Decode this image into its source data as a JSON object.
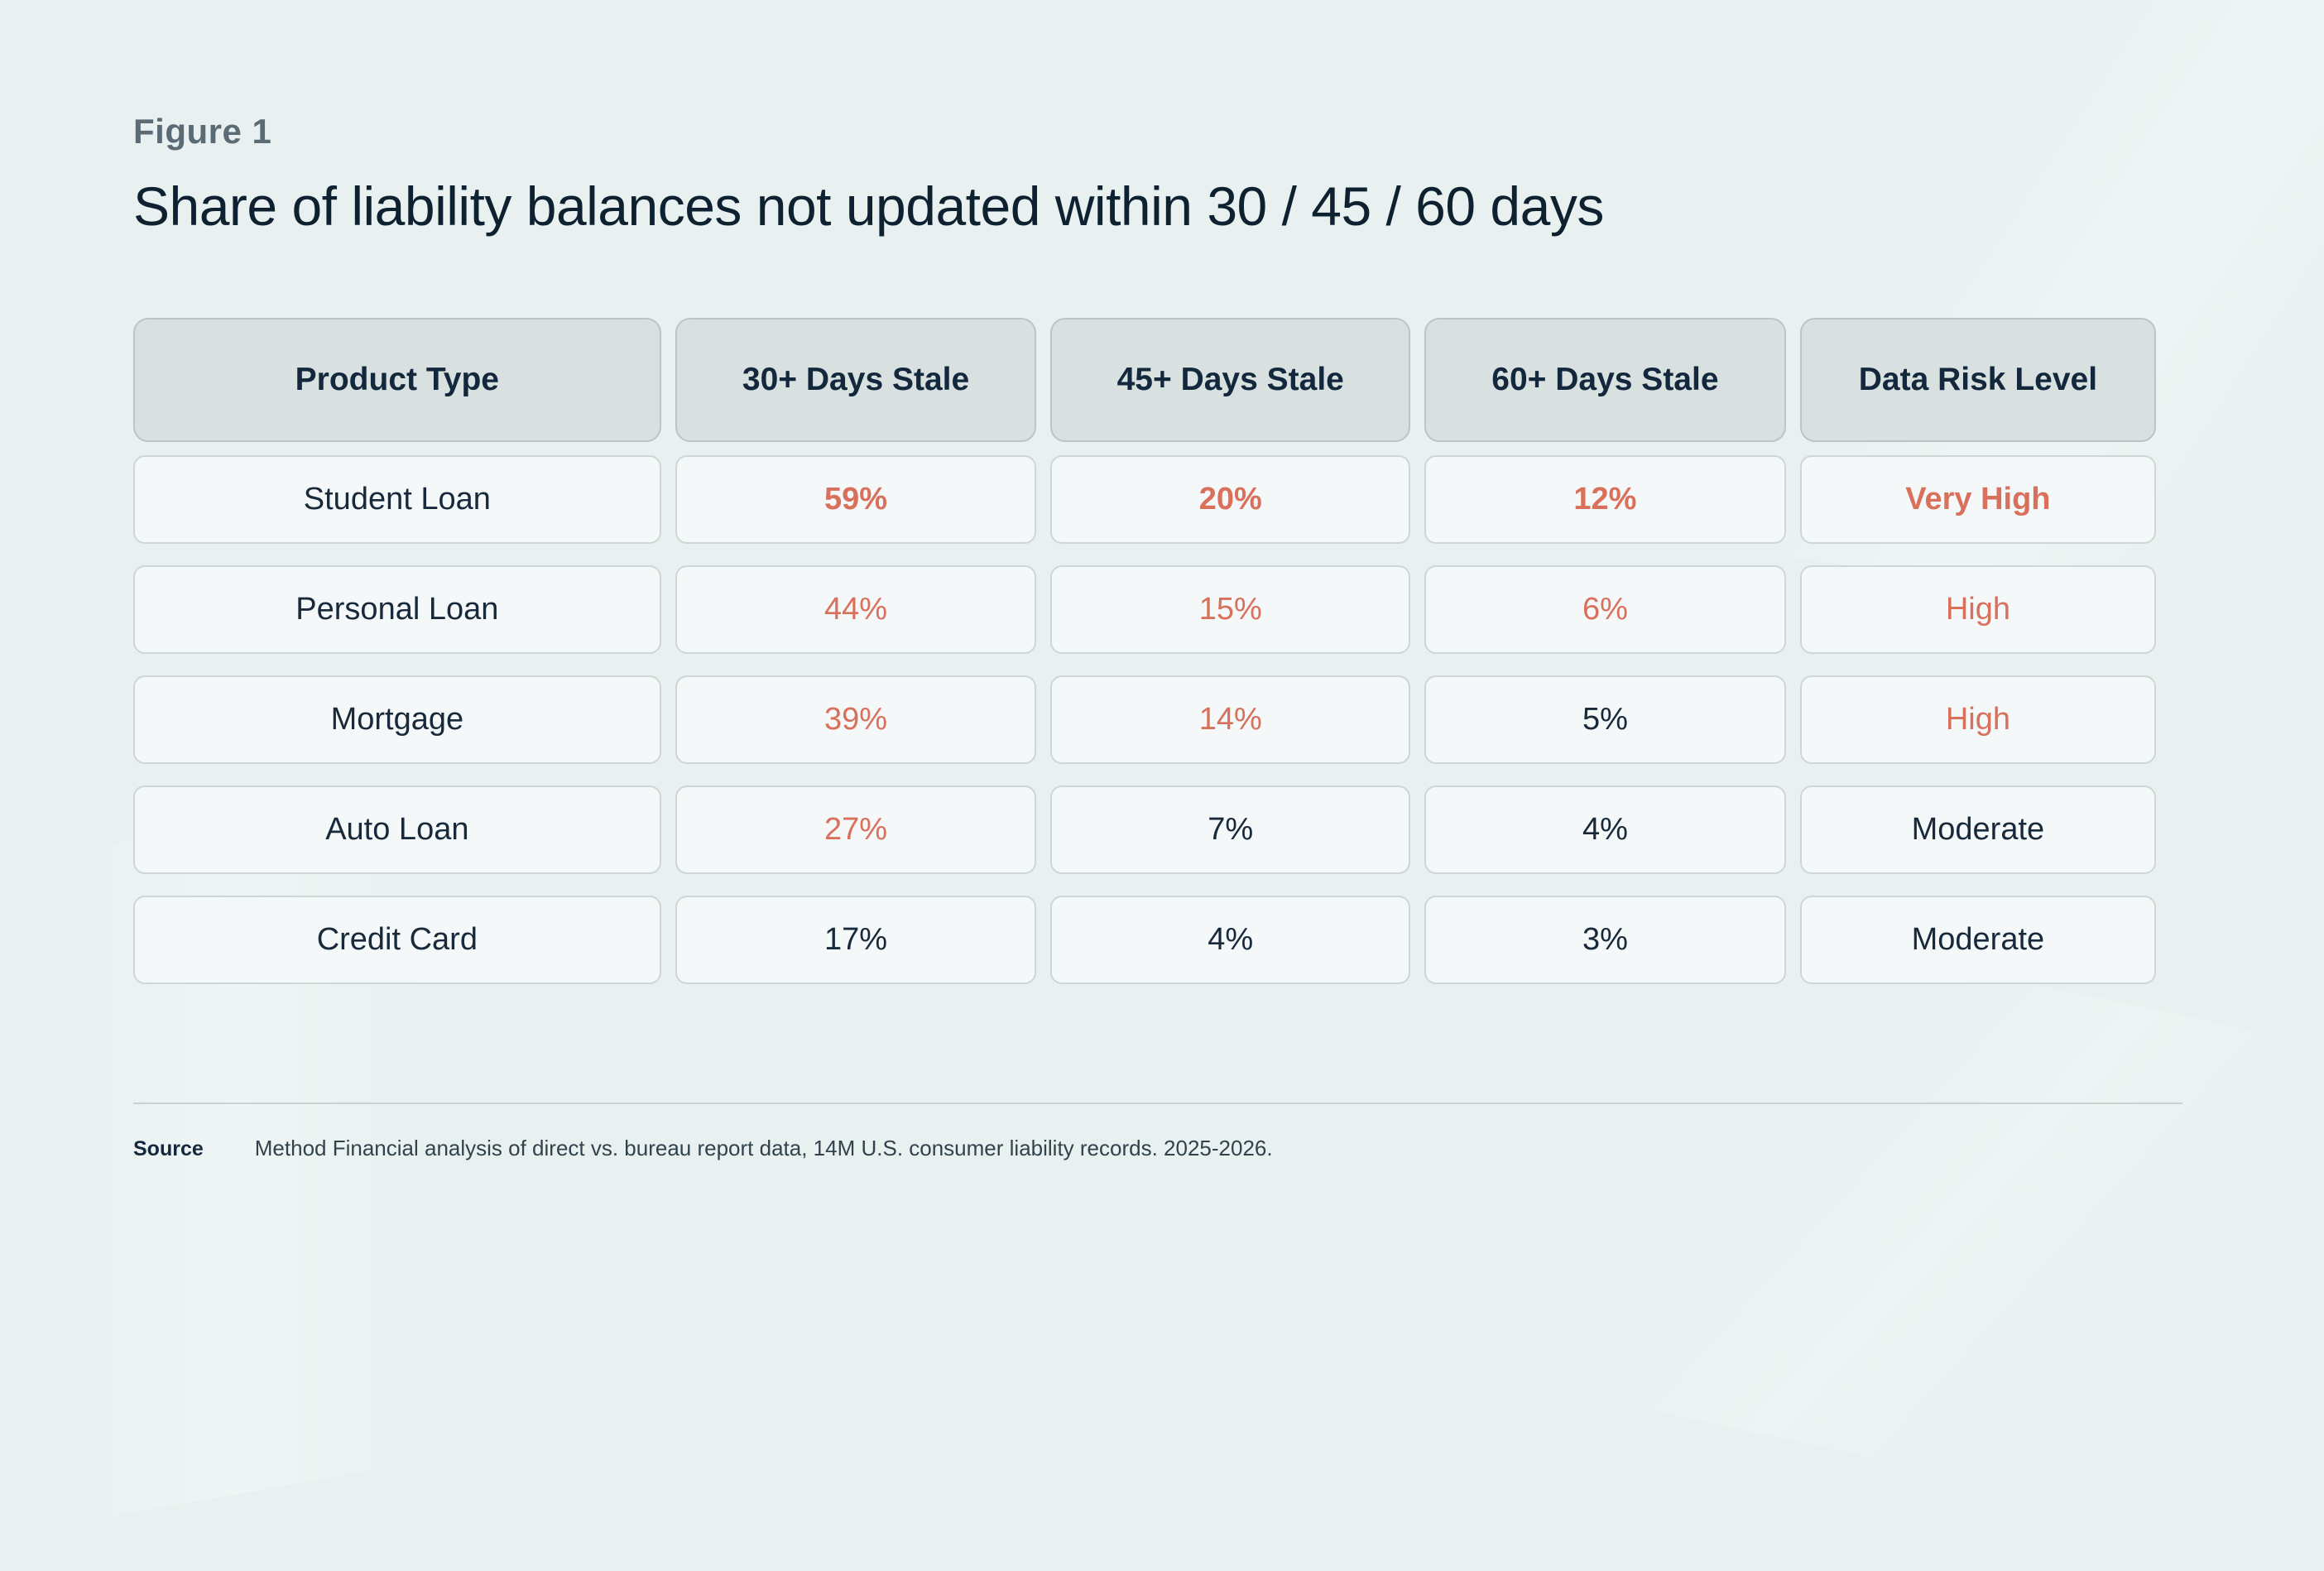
{
  "figure": {
    "label": "Figure 1",
    "title": "Share of liability balances not updated within 30 / 45 / 60 days"
  },
  "table": {
    "headers": [
      "Product Type",
      "30+ Days Stale",
      "45+ Days Stale",
      "60+ Days Stale",
      "Data Risk Level"
    ],
    "rows": [
      {
        "cells": [
          {
            "text": "Student Loan",
            "tone": "normal"
          },
          {
            "text": "59%",
            "tone": "accent-strong"
          },
          {
            "text": "20%",
            "tone": "accent-strong"
          },
          {
            "text": "12%",
            "tone": "accent-strong"
          },
          {
            "text": "Very High",
            "tone": "accent-strong"
          }
        ]
      },
      {
        "cells": [
          {
            "text": "Personal Loan",
            "tone": "normal"
          },
          {
            "text": "44%",
            "tone": "accent"
          },
          {
            "text": "15%",
            "tone": "accent"
          },
          {
            "text": "6%",
            "tone": "accent"
          },
          {
            "text": "High",
            "tone": "accent"
          }
        ]
      },
      {
        "cells": [
          {
            "text": "Mortgage",
            "tone": "normal"
          },
          {
            "text": "39%",
            "tone": "accent"
          },
          {
            "text": "14%",
            "tone": "accent"
          },
          {
            "text": "5%",
            "tone": "normal"
          },
          {
            "text": "High",
            "tone": "accent"
          }
        ]
      },
      {
        "cells": [
          {
            "text": "Auto Loan",
            "tone": "normal"
          },
          {
            "text": "27%",
            "tone": "accent"
          },
          {
            "text": "7%",
            "tone": "normal"
          },
          {
            "text": "4%",
            "tone": "normal"
          },
          {
            "text": "Moderate",
            "tone": "normal"
          }
        ]
      },
      {
        "cells": [
          {
            "text": "Credit Card",
            "tone": "normal"
          },
          {
            "text": "17%",
            "tone": "normal"
          },
          {
            "text": "4%",
            "tone": "normal"
          },
          {
            "text": "3%",
            "tone": "normal"
          },
          {
            "text": "Moderate",
            "tone": "normal"
          }
        ]
      }
    ]
  },
  "source": {
    "label": "Source",
    "text": "Method Financial analysis of direct vs. bureau report data, 14M U.S. consumer liability records. 2025-2026."
  },
  "colors": {
    "background": "#E8F1F0",
    "accent": "#D9705C",
    "navy": "#0E2130",
    "header_cell": "#D8E1E0",
    "body_cell": "#F4F8F8"
  },
  "chart_data": {
    "type": "table",
    "title": "Share of liability balances not updated within 30 / 45 / 60 days",
    "columns": [
      "Product Type",
      "30+ Days Stale",
      "45+ Days Stale",
      "60+ Days Stale",
      "Data Risk Level"
    ],
    "rows": [
      [
        "Student Loan",
        "59%",
        "20%",
        "12%",
        "Very High"
      ],
      [
        "Personal Loan",
        "44%",
        "15%",
        "6%",
        "High"
      ],
      [
        "Mortgage",
        "39%",
        "14%",
        "5%",
        "High"
      ],
      [
        "Auto Loan",
        "27%",
        "7%",
        "4%",
        "Moderate"
      ],
      [
        "Credit Card",
        "17%",
        "4%",
        "3%",
        "Moderate"
      ]
    ],
    "values_percent": {
      "categories": [
        "Student Loan",
        "Personal Loan",
        "Mortgage",
        "Auto Loan",
        "Credit Card"
      ],
      "series": [
        {
          "name": "30+ Days Stale",
          "values": [
            59,
            44,
            39,
            27,
            17
          ]
        },
        {
          "name": "45+ Days Stale",
          "values": [
            20,
            15,
            14,
            7,
            4
          ]
        },
        {
          "name": "60+ Days Stale",
          "values": [
            12,
            6,
            5,
            4,
            3
          ]
        }
      ]
    },
    "source": "Method Financial analysis of direct vs. bureau report data, 14M U.S. consumer liability records. 2025-2026."
  }
}
